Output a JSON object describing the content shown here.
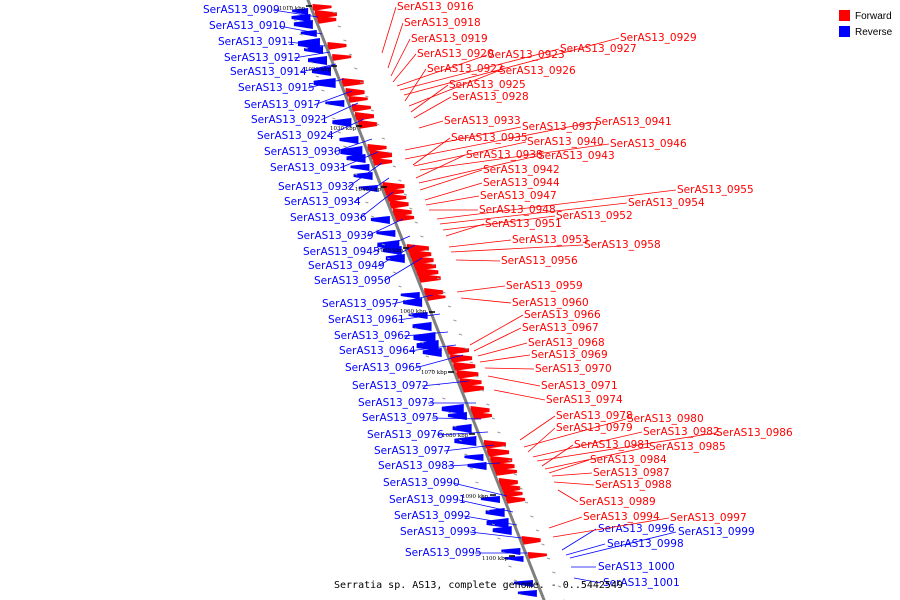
{
  "caption": "Serratia sp. AS13, complete genome. - 0..5442549",
  "legend": [
    {
      "label": "Forward",
      "color": "#ff0000"
    },
    {
      "label": "Reverse",
      "color": "#0000ff"
    }
  ],
  "colors": {
    "forward": "#ff0000",
    "reverse": "#0000ff",
    "backbone": "#808080"
  },
  "kbp_markers": [
    "1010 kbp",
    "1020 kbp",
    "1030 kbp",
    "1040 kbp",
    "1050 kbp",
    "1060 kbp",
    "1070 kbp",
    "1080 kbp",
    "1090 kbp",
    "1100 kbp"
  ],
  "reverse_genes": [
    "SerAS13_0909",
    "SerAS13_0910",
    "SerAS13_0911",
    "SerAS13_0912",
    "SerAS13_0914",
    "SerAS13_0915",
    "SerAS13_0917",
    "SerAS13_0921",
    "SerAS13_0924",
    "SerAS13_0930",
    "SerAS13_0931",
    "SerAS13_0932",
    "SerAS13_0934",
    "SerAS13_0936",
    "SerAS13_0939",
    "SerAS13_0945",
    "SerAS13_0949",
    "SerAS13_0950",
    "SerAS13_0957",
    "SerAS13_0961",
    "SerAS13_0962",
    "SerAS13_0964",
    "SerAS13_0965",
    "SerAS13_0972",
    "SerAS13_0973",
    "SerAS13_0975",
    "SerAS13_0976",
    "SerAS13_0977",
    "SerAS13_0983",
    "SerAS13_0990",
    "SerAS13_0991",
    "SerAS13_0992",
    "SerAS13_0993",
    "SerAS13_0995",
    "SerAS13_0996",
    "SerAS13_0998",
    "SerAS13_0999",
    "SerAS13_1000",
    "SerAS13_1001"
  ],
  "forward_genes": [
    "SerAS13_0916",
    "SerAS13_0918",
    "SerAS13_0919",
    "SerAS13_0920",
    "SerAS13_0923",
    "SerAS13_0927",
    "SerAS13_0929",
    "SerAS13_0922",
    "SerAS13_0926",
    "SerAS13_0925",
    "SerAS13_0928",
    "SerAS13_0933",
    "SerAS13_0937",
    "SerAS13_0941",
    "SerAS13_0935",
    "SerAS13_0940",
    "SerAS13_0946",
    "SerAS13_0938",
    "SerAS13_0943",
    "SerAS13_0942",
    "SerAS13_0944",
    "SerAS13_0947",
    "SerAS13_0948",
    "SerAS13_0955",
    "SerAS13_0954",
    "SerAS13_0952",
    "SerAS13_0951",
    "SerAS13_0953",
    "SerAS13_0958",
    "SerAS13_0956",
    "SerAS13_0959",
    "SerAS13_0960",
    "SerAS13_0966",
    "SerAS13_0967",
    "SerAS13_0968",
    "SerAS13_0969",
    "SerAS13_0970",
    "SerAS13_0971",
    "SerAS13_0974",
    "SerAS13_0978",
    "SerAS13_0980",
    "SerAS13_0979",
    "SerAS13_0982",
    "SerAS13_0986",
    "SerAS13_0981",
    "SerAS13_0985",
    "SerAS13_0984",
    "SerAS13_0987",
    "SerAS13_0988",
    "SerAS13_0989",
    "SerAS13_0994",
    "SerAS13_0997"
  ]
}
